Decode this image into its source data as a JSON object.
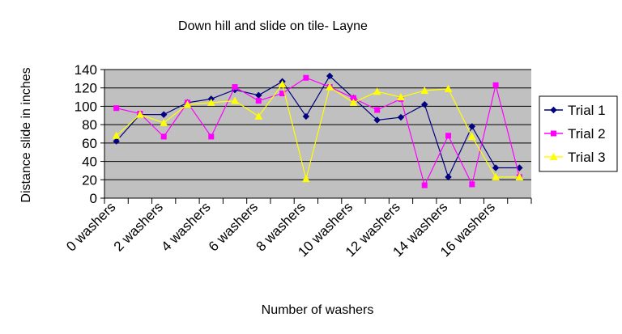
{
  "chart_data": {
    "type": "line",
    "title": "Down hill and slide on tile- Layne",
    "xlabel": "Number of washers",
    "ylabel": "Distance slide in inches",
    "ylim": [
      0,
      140
    ],
    "yticks": [
      0,
      20,
      40,
      60,
      80,
      100,
      120,
      140
    ],
    "categories": [
      "0 washers",
      "",
      "2 washers",
      "",
      "4 washers",
      "",
      "6 washers",
      "",
      "8 washers",
      "",
      "10 washers",
      "",
      "12 washers",
      "",
      "14 washers",
      "",
      "16 washers",
      ""
    ],
    "grid": true,
    "legend_position": "right",
    "plot_background": "#c0c0c0",
    "series": [
      {
        "name": "Trial 1",
        "color": "#000080",
        "marker": "diamond",
        "values": [
          62,
          91,
          91,
          104,
          108,
          118,
          112,
          127,
          89,
          133,
          109,
          85,
          88,
          102,
          23,
          78,
          33,
          33
        ]
      },
      {
        "name": "Trial 2",
        "color": "#ff00ff",
        "marker": "square",
        "values": [
          98,
          92,
          67,
          104,
          67,
          121,
          106,
          114,
          131,
          121,
          109,
          96,
          108,
          14,
          68,
          15,
          123,
          23
        ]
      },
      {
        "name": "Trial 3",
        "color": "#ffff00",
        "marker": "triangle",
        "values": [
          68,
          91,
          82,
          102,
          104,
          106,
          89,
          124,
          21,
          121,
          104,
          116,
          110,
          117,
          119,
          67,
          23,
          23
        ]
      }
    ]
  }
}
